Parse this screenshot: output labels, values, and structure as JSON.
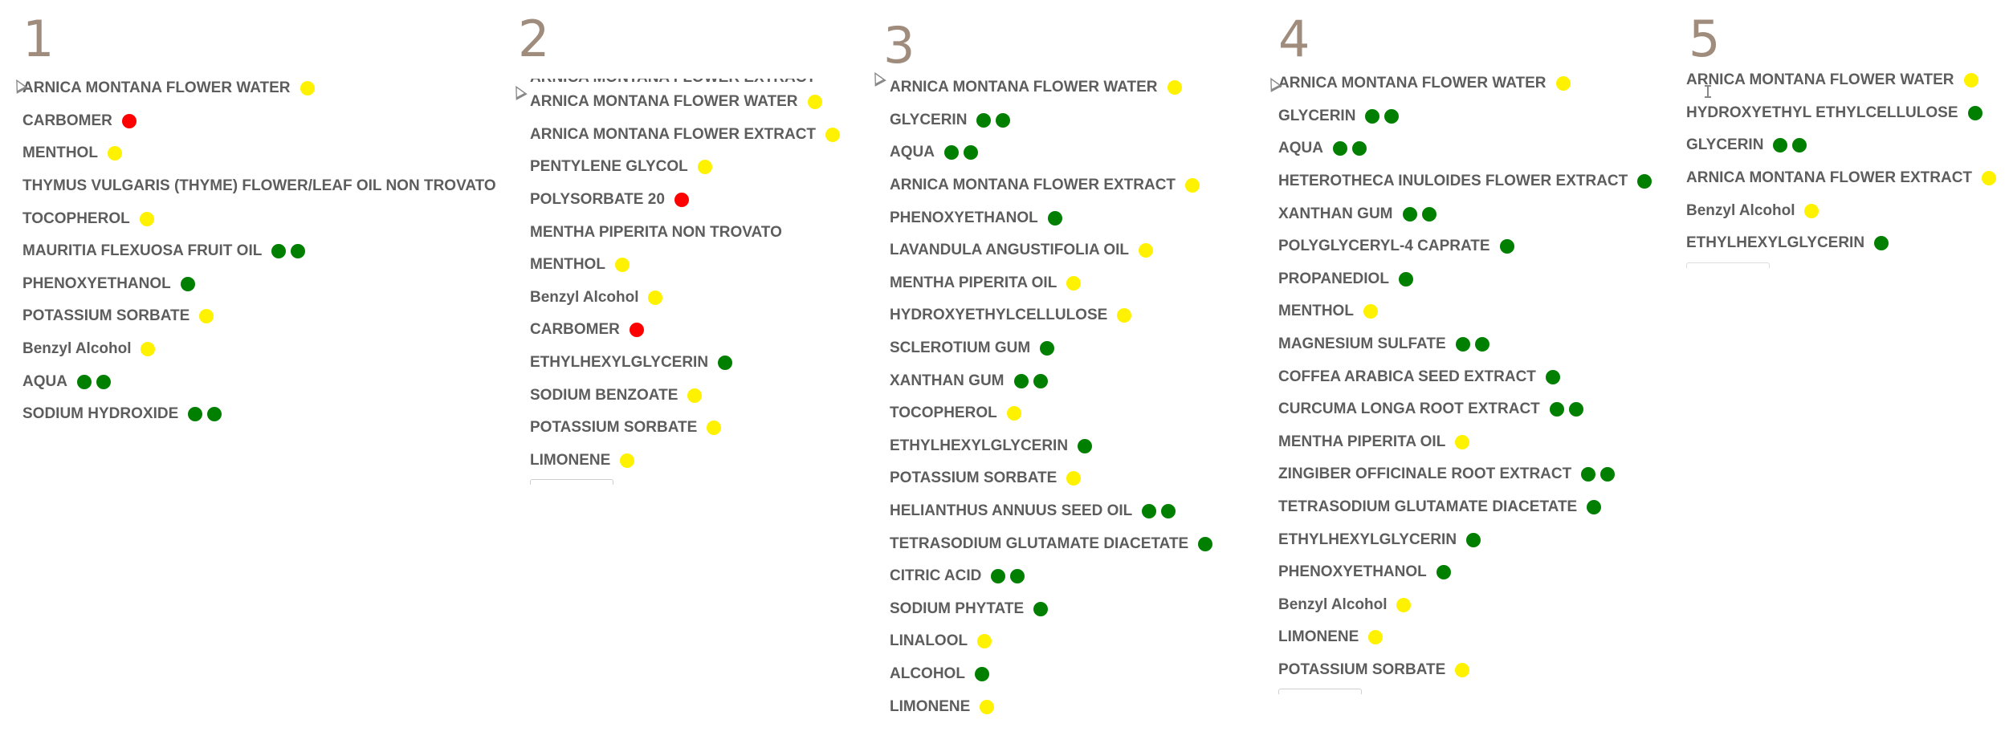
{
  "columns": [
    {
      "number": "1",
      "items": [
        {
          "name": "ARNICA MONTANA FLOWER WATER",
          "dots": [
            "yellow"
          ]
        },
        {
          "name": "CARBOMER",
          "dots": [
            "red"
          ]
        },
        {
          "name": "MENTHOL",
          "dots": [
            "yellow"
          ]
        },
        {
          "name": "THYMUS VULGARIS (THYME) FLOWER/LEAF OIL NON TROVATO",
          "dots": []
        },
        {
          "name": "TOCOPHEROL",
          "dots": [
            "yellow"
          ]
        },
        {
          "name": "MAURITIA FLEXUOSA FRUIT OIL",
          "dots": [
            "green",
            "green"
          ]
        },
        {
          "name": "PHENOXYETHANOL",
          "dots": [
            "green"
          ]
        },
        {
          "name": "POTASSIUM SORBATE",
          "dots": [
            "yellow"
          ]
        },
        {
          "name": "Benzyl Alcohol",
          "dots": [
            "yellow"
          ]
        },
        {
          "name": "AQUA",
          "dots": [
            "green",
            "green"
          ]
        },
        {
          "name": "SODIUM HYDROXIDE",
          "dots": [
            "green",
            "green"
          ]
        }
      ]
    },
    {
      "number": "2",
      "items": [
        {
          "name": "ARNICA MONTANA FLOWER WATER",
          "dots": [
            "yellow"
          ]
        },
        {
          "name": "ARNICA MONTANA FLOWER EXTRACT",
          "dots": [
            "yellow"
          ]
        },
        {
          "name": "PENTYLENE GLYCOL",
          "dots": [
            "yellow"
          ]
        },
        {
          "name": "POLYSORBATE 20",
          "dots": [
            "red"
          ]
        },
        {
          "name": "MENTHA PIPERITA NON TROVATO",
          "dots": []
        },
        {
          "name": "MENTHOL",
          "dots": [
            "yellow"
          ]
        },
        {
          "name": "Benzyl Alcohol",
          "dots": [
            "yellow"
          ]
        },
        {
          "name": "CARBOMER",
          "dots": [
            "red"
          ]
        },
        {
          "name": "ETHYLHEXYLGLYCERIN",
          "dots": [
            "green"
          ]
        },
        {
          "name": "SODIUM BENZOATE",
          "dots": [
            "yellow"
          ]
        },
        {
          "name": "POTASSIUM SORBATE",
          "dots": [
            "yellow"
          ]
        },
        {
          "name": "LIMONENE",
          "dots": [
            "yellow"
          ]
        }
      ]
    },
    {
      "number": "3",
      "items": [
        {
          "name": "ARNICA MONTANA FLOWER WATER",
          "dots": [
            "yellow"
          ]
        },
        {
          "name": "GLYCERIN",
          "dots": [
            "green",
            "green"
          ]
        },
        {
          "name": "AQUA",
          "dots": [
            "green",
            "green"
          ]
        },
        {
          "name": "ARNICA MONTANA FLOWER EXTRACT",
          "dots": [
            "yellow"
          ]
        },
        {
          "name": "PHENOXYETHANOL",
          "dots": [
            "green"
          ]
        },
        {
          "name": "LAVANDULA ANGUSTIFOLIA OIL",
          "dots": [
            "yellow"
          ]
        },
        {
          "name": "MENTHA PIPERITA OIL",
          "dots": [
            "yellow"
          ]
        },
        {
          "name": "HYDROXYETHYLCELLULOSE",
          "dots": [
            "yellow"
          ]
        },
        {
          "name": "SCLEROTIUM GUM",
          "dots": [
            "green"
          ]
        },
        {
          "name": "XANTHAN GUM",
          "dots": [
            "green",
            "green"
          ]
        },
        {
          "name": "TOCOPHEROL",
          "dots": [
            "yellow"
          ]
        },
        {
          "name": "ETHYLHEXYLGLYCERIN",
          "dots": [
            "green"
          ]
        },
        {
          "name": "POTASSIUM SORBATE",
          "dots": [
            "yellow"
          ]
        },
        {
          "name": "HELIANTHUS ANNUUS SEED OIL",
          "dots": [
            "green",
            "green"
          ]
        },
        {
          "name": "TETRASODIUM GLUTAMATE DIACETATE",
          "dots": [
            "green"
          ]
        },
        {
          "name": "CITRIC ACID",
          "dots": [
            "green",
            "green"
          ]
        },
        {
          "name": "SODIUM PHYTATE",
          "dots": [
            "green"
          ]
        },
        {
          "name": "LINALOOL",
          "dots": [
            "yellow"
          ]
        },
        {
          "name": "ALCOHOL",
          "dots": [
            "green"
          ]
        },
        {
          "name": "LIMONENE",
          "dots": [
            "yellow"
          ]
        }
      ]
    },
    {
      "number": "4",
      "items": [
        {
          "name": "ARNICA MONTANA FLOWER WATER",
          "dots": [
            "yellow"
          ]
        },
        {
          "name": "GLYCERIN",
          "dots": [
            "green",
            "green"
          ]
        },
        {
          "name": "AQUA",
          "dots": [
            "green",
            "green"
          ]
        },
        {
          "name": "HETEROTHECA INULOIDES FLOWER EXTRACT",
          "dots": [
            "green"
          ]
        },
        {
          "name": "XANTHAN GUM",
          "dots": [
            "green",
            "green"
          ]
        },
        {
          "name": "POLYGLYCERYL-4 CAPRATE",
          "dots": [
            "green"
          ]
        },
        {
          "name": "PROPANEDIOL",
          "dots": [
            "green"
          ]
        },
        {
          "name": "MENTHOL",
          "dots": [
            "yellow"
          ]
        },
        {
          "name": "MAGNESIUM SULFATE",
          "dots": [
            "green",
            "green"
          ]
        },
        {
          "name": "COFFEA ARABICA SEED EXTRACT",
          "dots": [
            "green"
          ]
        },
        {
          "name": "CURCUMA LONGA ROOT EXTRACT",
          "dots": [
            "green",
            "green"
          ]
        },
        {
          "name": "MENTHA PIPERITA OIL",
          "dots": [
            "yellow"
          ]
        },
        {
          "name": "ZINGIBER OFFICINALE ROOT EXTRACT",
          "dots": [
            "green",
            "green"
          ]
        },
        {
          "name": "TETRASODIUM GLUTAMATE DIACETATE",
          "dots": [
            "green"
          ]
        },
        {
          "name": "ETHYLHEXYLGLYCERIN",
          "dots": [
            "green"
          ]
        },
        {
          "name": "PHENOXYETHANOL",
          "dots": [
            "green"
          ]
        },
        {
          "name": "Benzyl Alcohol",
          "dots": [
            "yellow"
          ]
        },
        {
          "name": "LIMONENE",
          "dots": [
            "yellow"
          ]
        },
        {
          "name": "POTASSIUM SORBATE",
          "dots": [
            "yellow"
          ]
        }
      ]
    },
    {
      "number": "5",
      "items": [
        {
          "name": "ARNICA MONTANA FLOWER WATER",
          "dots": [
            "yellow"
          ]
        },
        {
          "name": "HYDROXYETHYL ETHYLCELLULOSE",
          "dots": [
            "green"
          ]
        },
        {
          "name": "GLYCERIN",
          "dots": [
            "green",
            "green"
          ]
        },
        {
          "name": "ARNICA MONTANA FLOWER EXTRACT",
          "dots": [
            "yellow"
          ]
        },
        {
          "name": "Benzyl Alcohol",
          "dots": [
            "yellow"
          ]
        },
        {
          "name": "ETHYLHEXYLGLYCERIN",
          "dots": [
            "green"
          ]
        }
      ]
    }
  ],
  "colors": {
    "yellow": "#fff200",
    "red": "#ff0000",
    "green": "#007f00",
    "heading": "#a08c7c",
    "text": "#5d5d5d"
  }
}
